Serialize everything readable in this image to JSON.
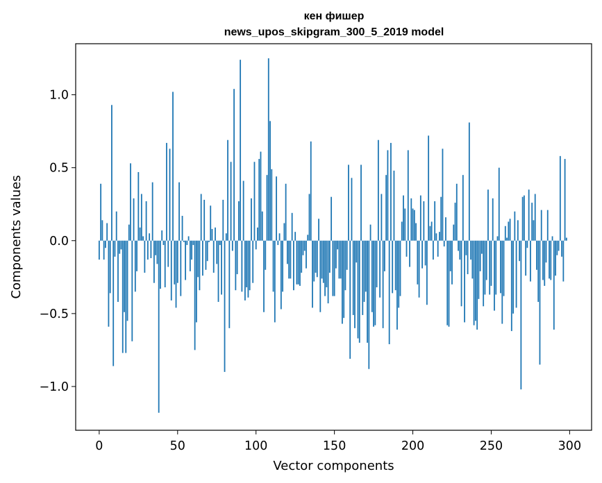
{
  "chart_data": {
    "type": "bar",
    "title": "кен фишер",
    "subtitle": "news_upos_skipgram_300_5_2019 model",
    "xlabel": "Vector components",
    "ylabel": "Components values",
    "xlim": [
      -15,
      314
    ],
    "ylim": [
      -1.3,
      1.35
    ],
    "xticks": [
      0,
      50,
      100,
      150,
      200,
      250,
      300
    ],
    "yticks": [
      -1.0,
      -0.5,
      0.0,
      0.5,
      1.0
    ],
    "ytick_labels": [
      "−1.0",
      "−0.5",
      "0.0",
      "0.5",
      "1.0"
    ],
    "grid": false,
    "bar_color": "#1f77b4",
    "values": [
      -0.13,
      0.39,
      0.14,
      -0.13,
      -0.05,
      0.12,
      -0.59,
      -0.36,
      0.93,
      -0.86,
      -0.11,
      0.2,
      -0.42,
      -0.09,
      -0.06,
      -0.77,
      -0.49,
      -0.77,
      -0.55,
      0.11,
      0.53,
      -0.69,
      0.29,
      -0.35,
      -0.21,
      0.47,
      0.09,
      0.32,
      0.03,
      -0.22,
      0.27,
      -0.13,
      0.05,
      -0.12,
      0.4,
      -0.29,
      -0.1,
      -0.16,
      -1.18,
      -0.33,
      0.07,
      -0.03,
      -0.32,
      0.67,
      -0.18,
      0.63,
      -0.41,
      1.02,
      -0.3,
      -0.46,
      -0.29,
      0.4,
      -0.38,
      0.17,
      -0.01,
      -0.27,
      -0.03,
      0.03,
      -0.21,
      -0.13,
      -0.03,
      -0.75,
      -0.56,
      -0.25,
      -0.34,
      0.32,
      -0.24,
      0.28,
      -0.2,
      -0.14,
      -0.01,
      0.24,
      0.08,
      -0.22,
      0.09,
      -0.16,
      -0.42,
      -0.03,
      -0.37,
      0.28,
      -0.9,
      0.05,
      0.69,
      -0.6,
      0.54,
      -0.07,
      1.04,
      -0.34,
      -0.23,
      0.27,
      1.24,
      -0.35,
      0.41,
      -0.41,
      -0.32,
      -0.39,
      -0.34,
      0.29,
      -0.29,
      0.54,
      -0.06,
      0.09,
      0.56,
      0.61,
      0.2,
      -0.49,
      -0.2,
      0.45,
      1.25,
      0.82,
      0.49,
      -0.35,
      -0.56,
      0.44,
      -0.03,
      0.05,
      -0.47,
      -0.35,
      0.12,
      0.39,
      -0.16,
      -0.26,
      -0.26,
      0.19,
      -0.34,
      0.06,
      -0.3,
      -0.3,
      -0.31,
      -0.22,
      -0.1,
      -0.07,
      -0.19,
      0.04,
      0.32,
      0.68,
      -0.46,
      -0.28,
      -0.22,
      -0.25,
      0.15,
      -0.49,
      -0.26,
      -0.29,
      -0.38,
      -0.32,
      -0.43,
      -0.22,
      0.3,
      -0.38,
      -0.38,
      -0.19,
      -0.06,
      -0.26,
      -0.26,
      -0.57,
      -0.53,
      -0.34,
      -0.2,
      0.52,
      -0.81,
      0.43,
      -0.51,
      -0.6,
      -0.15,
      -0.67,
      -0.7,
      0.52,
      -0.51,
      -0.42,
      -0.35,
      -0.7,
      -0.88,
      0.11,
      -0.49,
      -0.59,
      -0.58,
      -0.32,
      0.69,
      -0.39,
      0.32,
      -0.6,
      -0.21,
      0.45,
      0.62,
      -0.71,
      0.67,
      -0.36,
      0.48,
      -0.34,
      -0.61,
      -0.46,
      -0.38,
      0.13,
      0.31,
      0.22,
      -0.11,
      0.62,
      -0.18,
      0.29,
      0.22,
      0.21,
      0.12,
      -0.3,
      -0.39,
      0.31,
      -0.19,
      0.27,
      -0.17,
      -0.44,
      0.72,
      0.1,
      0.13,
      -0.13,
      0.27,
      0.05,
      -0.11,
      0.06,
      0.3,
      0.63,
      -0.04,
      0.16,
      -0.58,
      -0.59,
      -0.21,
      -0.3,
      0.11,
      0.26,
      0.39,
      -0.07,
      -0.13,
      -0.45,
      0.45,
      -0.56,
      -0.1,
      -0.23,
      0.81,
      -0.13,
      -0.26,
      -0.58,
      -0.55,
      -0.61,
      -0.4,
      -0.21,
      -0.09,
      -0.45,
      -0.37,
      -0.27,
      0.35,
      -0.37,
      -0.31,
      0.29,
      -0.48,
      -0.37,
      0.03,
      0.5,
      -0.36,
      -0.57,
      -0.38,
      0.1,
      0.02,
      0.13,
      0.15,
      -0.62,
      -0.5,
      0.2,
      -0.46,
      0.14,
      -0.14,
      -1.02,
      0.3,
      0.31,
      -0.24,
      -0.05,
      0.35,
      -0.28,
      0.26,
      0.14,
      0.32,
      -0.2,
      -0.42,
      -0.85,
      0.21,
      -0.27,
      -0.31,
      -0.15,
      0.21,
      -0.26,
      -0.27,
      0.03,
      -0.61,
      -0.24,
      -0.1,
      -0.07,
      0.58,
      -0.11,
      -0.28,
      0.56,
      0.02
    ]
  }
}
